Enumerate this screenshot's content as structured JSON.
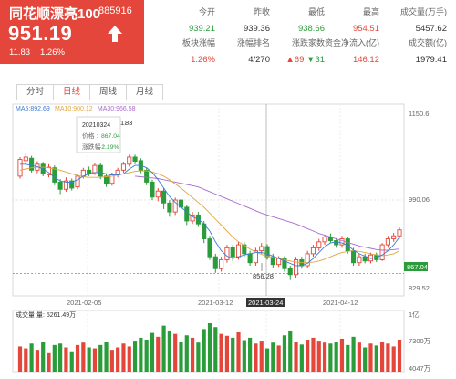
{
  "stock": {
    "name": "同花顺漂亮100",
    "code": "885916",
    "price": "951.19",
    "change": "11.83",
    "change_pct": "1.26%",
    "direction_icon": "up-arrow-icon"
  },
  "stats": [
    {
      "label": "今开",
      "value": "939.21",
      "color": "green"
    },
    {
      "label": "昨收",
      "value": "939.36",
      "color": "dark"
    },
    {
      "label": "最低",
      "value": "938.66",
      "color": "green"
    },
    {
      "label": "最高",
      "value": "954.51",
      "color": "red"
    },
    {
      "label": "成交量(万手)",
      "value": "5457.62",
      "color": "dark"
    },
    {
      "label": "板块涨幅",
      "value": "1.26%",
      "color": "red"
    },
    {
      "label": "涨幅排名",
      "value": "4/270",
      "color": "dark"
    },
    {
      "label": "涨跌家数",
      "value_up": "69",
      "value_down": "31",
      "color": "mixed"
    },
    {
      "label": "资金净流入(亿)",
      "value": "146.12",
      "color": "red"
    },
    {
      "label": "成交额(亿)",
      "value": "1979.41",
      "color": "dark"
    }
  ],
  "tabs": [
    {
      "label": "分时",
      "active": false
    },
    {
      "label": "日线",
      "active": true
    },
    {
      "label": "周线",
      "active": false
    },
    {
      "label": "月线",
      "active": false
    }
  ],
  "colors": {
    "up": "#e5463b",
    "down": "#2a9d3a",
    "ma5": "#3a7bd5",
    "ma10": "#e0a640",
    "ma30": "#a86bd0"
  },
  "chart_data": {
    "type": "candlestick",
    "ma_legend": [
      {
        "label": "MA5:892.69",
        "color": "#3a7bd5"
      },
      {
        "label": "MA10:900.12",
        "color": "#e0a640"
      },
      {
        "label": "MA30:966.58",
        "color": "#a86bd0"
      }
    ],
    "price_axis": {
      "ticks": [
        "1150.6",
        "990.06",
        "829.52"
      ],
      "current_label": "867.04",
      "range": [
        829.52,
        1150.6
      ]
    },
    "date_axis": {
      "ticks": [
        "2021-02-05",
        "2021-03-12",
        "2021-03-24",
        "2021-04-12"
      ],
      "highlight": "2021-03-24"
    },
    "marker_high_label": "1",
    "marker_high_suffix": "83",
    "marker_low_label": "856.28",
    "tooltip": {
      "date": "20210324",
      "price_label": "价格 :",
      "price": "867.04",
      "change_label": "涨跌幅 :",
      "change": "-2.19%"
    },
    "volume_axis": {
      "ticks": [
        "1亿",
        "7300万",
        "4047万"
      ]
    },
    "volume_label": "成交量 量: 5261.49万",
    "candles": [
      {
        "o": 1030,
        "c": 1058,
        "h": 1062,
        "l": 1026
      },
      {
        "o": 1056,
        "c": 1062,
        "h": 1068,
        "l": 1050
      },
      {
        "o": 1060,
        "c": 1040,
        "h": 1064,
        "l": 1036
      },
      {
        "o": 1040,
        "c": 1050,
        "h": 1055,
        "l": 1035
      },
      {
        "o": 1050,
        "c": 1035,
        "h": 1054,
        "l": 1030
      },
      {
        "o": 1032,
        "c": 1045,
        "h": 1050,
        "l": 1028
      },
      {
        "o": 1044,
        "c": 1020,
        "h": 1048,
        "l": 1015
      },
      {
        "o": 1020,
        "c": 1008,
        "h": 1025,
        "l": 1000
      },
      {
        "o": 1008,
        "c": 1022,
        "h": 1028,
        "l": 1004
      },
      {
        "o": 1022,
        "c": 1010,
        "h": 1026,
        "l": 1006
      },
      {
        "o": 1012,
        "c": 1030,
        "h": 1034,
        "l": 1008
      },
      {
        "o": 1030,
        "c": 1040,
        "h": 1044,
        "l": 1026
      },
      {
        "o": 1040,
        "c": 1035,
        "h": 1046,
        "l": 1030
      },
      {
        "o": 1036,
        "c": 1048,
        "h": 1052,
        "l": 1032
      },
      {
        "o": 1048,
        "c": 1030,
        "h": 1052,
        "l": 1025
      },
      {
        "o": 1030,
        "c": 1018,
        "h": 1034,
        "l": 1012
      },
      {
        "o": 1018,
        "c": 1032,
        "h": 1036,
        "l": 1014
      },
      {
        "o": 1032,
        "c": 1040,
        "h": 1044,
        "l": 1028
      },
      {
        "o": 1040,
        "c": 1050,
        "h": 1054,
        "l": 1036
      },
      {
        "o": 1050,
        "c": 1062,
        "h": 1066,
        "l": 1046
      },
      {
        "o": 1062,
        "c": 1055,
        "h": 1066,
        "l": 1050
      },
      {
        "o": 1056,
        "c": 1040,
        "h": 1060,
        "l": 1035
      },
      {
        "o": 1040,
        "c": 1020,
        "h": 1044,
        "l": 1015
      },
      {
        "o": 1020,
        "c": 995,
        "h": 1024,
        "l": 990
      },
      {
        "o": 995,
        "c": 1005,
        "h": 1010,
        "l": 988
      },
      {
        "o": 1005,
        "c": 985,
        "h": 1010,
        "l": 975
      },
      {
        "o": 985,
        "c": 970,
        "h": 990,
        "l": 962
      },
      {
        "o": 970,
        "c": 990,
        "h": 994,
        "l": 965
      },
      {
        "o": 990,
        "c": 978,
        "h": 995,
        "l": 972
      },
      {
        "o": 978,
        "c": 955,
        "h": 982,
        "l": 948
      },
      {
        "o": 955,
        "c": 965,
        "h": 970,
        "l": 950
      },
      {
        "o": 965,
        "c": 950,
        "h": 970,
        "l": 945
      },
      {
        "o": 950,
        "c": 925,
        "h": 955,
        "l": 918
      },
      {
        "o": 925,
        "c": 895,
        "h": 930,
        "l": 890
      },
      {
        "o": 895,
        "c": 875,
        "h": 900,
        "l": 868
      },
      {
        "o": 875,
        "c": 890,
        "h": 895,
        "l": 870
      },
      {
        "o": 890,
        "c": 910,
        "h": 915,
        "l": 885
      },
      {
        "o": 910,
        "c": 895,
        "h": 915,
        "l": 888
      },
      {
        "o": 895,
        "c": 915,
        "h": 920,
        "l": 890
      },
      {
        "o": 915,
        "c": 900,
        "h": 920,
        "l": 895
      },
      {
        "o": 900,
        "c": 885,
        "h": 905,
        "l": 880
      },
      {
        "o": 885,
        "c": 905,
        "h": 910,
        "l": 880
      },
      {
        "o": 905,
        "c": 912,
        "h": 918,
        "l": 900
      },
      {
        "o": 912,
        "c": 895,
        "h": 916,
        "l": 890
      },
      {
        "o": 895,
        "c": 882,
        "h": 900,
        "l": 876
      },
      {
        "o": 882,
        "c": 892,
        "h": 896,
        "l": 878
      },
      {
        "o": 892,
        "c": 875,
        "h": 896,
        "l": 870
      },
      {
        "o": 875,
        "c": 865,
        "h": 880,
        "l": 856
      },
      {
        "o": 865,
        "c": 890,
        "h": 895,
        "l": 860
      },
      {
        "o": 890,
        "c": 880,
        "h": 895,
        "l": 875
      },
      {
        "o": 880,
        "c": 900,
        "h": 905,
        "l": 876
      },
      {
        "o": 900,
        "c": 910,
        "h": 915,
        "l": 895
      },
      {
        "o": 910,
        "c": 920,
        "h": 925,
        "l": 905
      },
      {
        "o": 920,
        "c": 928,
        "h": 932,
        "l": 915
      },
      {
        "o": 928,
        "c": 922,
        "h": 934,
        "l": 918
      },
      {
        "o": 922,
        "c": 915,
        "h": 926,
        "l": 910
      },
      {
        "o": 915,
        "c": 925,
        "h": 930,
        "l": 910
      },
      {
        "o": 925,
        "c": 905,
        "h": 928,
        "l": 900
      },
      {
        "o": 905,
        "c": 885,
        "h": 910,
        "l": 880
      },
      {
        "o": 885,
        "c": 895,
        "h": 900,
        "l": 880
      },
      {
        "o": 895,
        "c": 888,
        "h": 900,
        "l": 884
      },
      {
        "o": 888,
        "c": 898,
        "h": 902,
        "l": 884
      },
      {
        "o": 898,
        "c": 890,
        "h": 902,
        "l": 886
      },
      {
        "o": 890,
        "c": 915,
        "h": 918,
        "l": 888
      },
      {
        "o": 915,
        "c": 925,
        "h": 930,
        "l": 910
      },
      {
        "o": 925,
        "c": 930,
        "h": 935,
        "l": 920
      },
      {
        "o": 930,
        "c": 940,
        "h": 944,
        "l": 925
      }
    ],
    "ma5": [
      1050,
      1050,
      1048,
      1046,
      1042,
      1036,
      1028,
      1022,
      1020,
      1020,
      1024,
      1030,
      1034,
      1036,
      1036,
      1034,
      1032,
      1032,
      1034,
      1042,
      1048,
      1048,
      1044,
      1036,
      1024,
      1010,
      996,
      986,
      978,
      970,
      962,
      958,
      950,
      938,
      920,
      905,
      896,
      892,
      895,
      898,
      900,
      902,
      902,
      900,
      896,
      892,
      888,
      884,
      880,
      880,
      884,
      892,
      902,
      912,
      918,
      920,
      918,
      914,
      906,
      900,
      896,
      892,
      894,
      898,
      905,
      915,
      928
    ],
    "ma10": [
      1040,
      1042,
      1044,
      1045,
      1045,
      1044,
      1042,
      1040,
      1037,
      1034,
      1031,
      1029,
      1028,
      1028,
      1028,
      1029,
      1030,
      1032,
      1034,
      1036,
      1038,
      1039,
      1039,
      1037,
      1034,
      1030,
      1024,
      1017,
      1010,
      1002,
      994,
      986,
      978,
      968,
      958,
      948,
      938,
      928,
      920,
      914,
      908,
      903,
      899,
      896,
      894,
      892,
      890,
      888,
      886,
      885,
      885,
      886,
      888,
      891,
      895,
      899,
      902,
      904,
      905,
      904,
      902,
      900,
      898,
      897,
      898,
      900,
      905
    ],
    "ma30": [
      null,
      null,
      null,
      null,
      null,
      null,
      null,
      null,
      null,
      null,
      null,
      null,
      null,
      null,
      null,
      null,
      null,
      null,
      null,
      null,
      1030,
      1029,
      1028,
      1027,
      1026,
      1024,
      1022,
      1020,
      1018,
      1016,
      1014,
      1012,
      1008,
      1004,
      1000,
      996,
      992,
      988,
      984,
      980,
      976,
      972,
      968,
      965,
      962,
      959,
      956,
      953,
      950,
      946,
      942,
      938,
      934,
      931,
      928,
      925,
      922,
      919,
      916,
      913,
      911,
      909,
      907,
      906,
      906,
      907,
      908
    ],
    "volumes": [
      52,
      48,
      58,
      45,
      62,
      40,
      55,
      58,
      50,
      42,
      55,
      60,
      50,
      48,
      55,
      62,
      45,
      50,
      58,
      52,
      64,
      70,
      66,
      80,
      72,
      95,
      85,
      78,
      62,
      75,
      70,
      60,
      88,
      100,
      92,
      78,
      74,
      70,
      82,
      65,
      70,
      58,
      64,
      48,
      60,
      54,
      75,
      85,
      62,
      56,
      66,
      70,
      64,
      60,
      58,
      62,
      68,
      55,
      72,
      60,
      50,
      58,
      54,
      62,
      58,
      52,
      66
    ]
  }
}
